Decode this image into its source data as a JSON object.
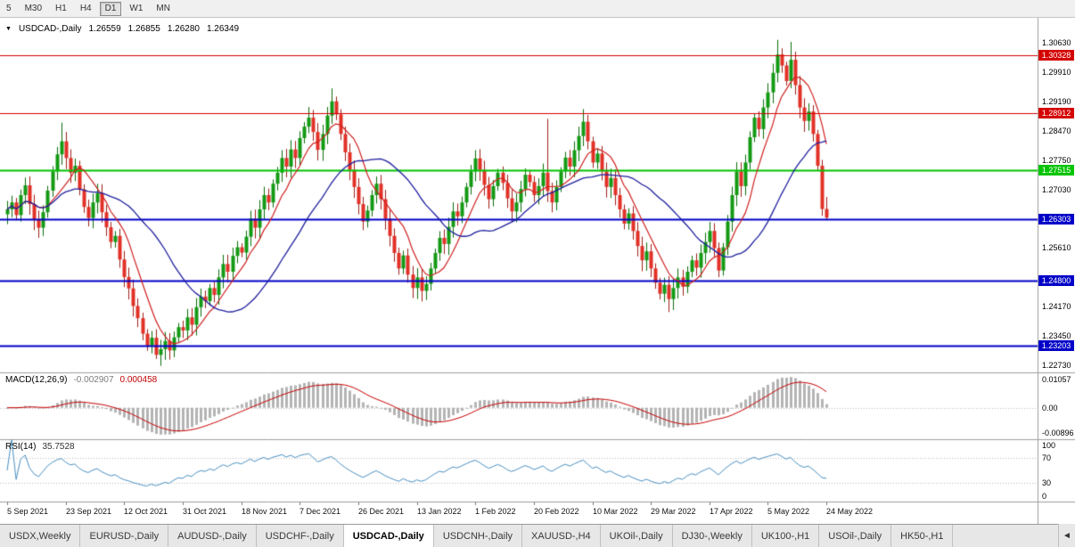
{
  "toolbar": {
    "timeframes": [
      {
        "label": "5",
        "active": false
      },
      {
        "label": "M30",
        "active": false
      },
      {
        "label": "H1",
        "active": false
      },
      {
        "label": "H4",
        "active": false
      },
      {
        "label": "D1",
        "active": true
      },
      {
        "label": "W1",
        "active": false
      },
      {
        "label": "MN",
        "active": false
      }
    ]
  },
  "chart": {
    "marker": "▼",
    "symbol": "USDCAD-,Daily",
    "open": "1.26559",
    "high": "1.26855",
    "low": "1.26280",
    "close": "1.26349"
  },
  "chart_data": {
    "type": "candlestick",
    "title": "USDCAD-,Daily",
    "price_range": [
      1.2255,
      1.3125
    ],
    "closes": [
      1.2655,
      1.2672,
      1.2641,
      1.269,
      1.2714,
      1.2668,
      1.2631,
      1.261,
      1.2648,
      1.2701,
      1.2748,
      1.279,
      1.2822,
      1.2781,
      1.2745,
      1.2762,
      1.2704,
      1.2661,
      1.2634,
      1.2672,
      1.2695,
      1.2648,
      1.2611,
      1.2575,
      1.259,
      1.2532,
      1.2489,
      1.2461,
      1.2418,
      1.2388,
      1.235,
      1.2321,
      1.234,
      1.2298,
      1.2312,
      1.2332,
      1.2309,
      1.2341,
      1.2366,
      1.2358,
      1.239,
      1.2372,
      1.2415,
      1.2441,
      1.243,
      1.2462,
      1.2445,
      1.2488,
      1.2521,
      1.2502,
      1.2541,
      1.2562,
      1.2549,
      1.2588,
      1.2632,
      1.261,
      1.2655,
      1.269,
      1.2672,
      1.2718,
      1.2745,
      1.2781,
      1.276,
      1.2802,
      1.2781,
      1.283,
      1.2858,
      1.288,
      1.2845,
      1.2801,
      1.284,
      1.2885,
      1.292,
      1.2888,
      1.284,
      1.2795,
      1.2752,
      1.271,
      1.2668,
      1.2625,
      1.2652,
      1.269,
      1.2718,
      1.268,
      1.2632,
      1.259,
      1.2548,
      1.251,
      1.2542,
      1.2495,
      1.2462,
      1.2488,
      1.2455,
      1.2472,
      1.251,
      1.2548,
      1.2585,
      1.257,
      1.2612,
      1.265,
      1.2638,
      1.2672,
      1.271,
      1.2748,
      1.278,
      1.2752,
      1.2715,
      1.268,
      1.2712,
      1.2745,
      1.272,
      1.2682,
      1.265,
      1.2672,
      1.2705,
      1.274,
      1.2722,
      1.269,
      1.2712,
      1.2745,
      1.27,
      1.2672,
      1.271,
      1.2748,
      1.2782,
      1.276,
      1.28,
      1.2835,
      1.287,
      1.2822,
      1.277,
      1.2792,
      1.2748,
      1.271,
      1.2732,
      1.269,
      1.2655,
      1.262,
      1.2645,
      1.2602,
      1.2565,
      1.253,
      1.2552,
      1.251,
      1.2475,
      1.2448,
      1.247,
      1.2435,
      1.2462,
      1.2488,
      1.2465,
      1.2502,
      1.253,
      1.2512,
      1.2548,
      1.2575,
      1.2602,
      1.256,
      1.2505,
      1.2562,
      1.2625,
      1.269,
      1.2748,
      1.2712,
      1.277,
      1.2832,
      1.288,
      1.2852,
      1.2905,
      1.2942,
      1.299,
      1.3035,
      1.3008,
      1.297,
      1.3022,
      1.296,
      1.2905,
      1.2872,
      1.2895,
      1.284,
      1.2762,
      1.2656,
      1.26349
    ],
    "wick_overrides": {
      "12": {
        "h": 1.2868
      },
      "33": {
        "l": 1.2288
      },
      "67": {
        "h": 1.2906
      },
      "72": {
        "h": 1.2952
      },
      "120": {
        "h": 1.2877
      },
      "128": {
        "h": 1.2901
      },
      "147": {
        "l": 1.2403
      },
      "171": {
        "h": 1.3071
      },
      "174": {
        "h": 1.3066
      },
      "182": {
        "o": 1.26559,
        "h": 1.26855,
        "l": 1.2628
      }
    },
    "levels": [
      {
        "price": 1.30328,
        "text": "1.30328",
        "color": "#d40000",
        "width": 1
      },
      {
        "price": 1.28912,
        "text": "1.28912",
        "color": "#d40000",
        "width": 1
      },
      {
        "price": 1.27515,
        "text": "1.27515",
        "color": "#00c400",
        "width": 2
      },
      {
        "price": 1.26303,
        "text": "1.26303",
        "color": "#0000c8",
        "width": 2
      },
      {
        "price": 1.248,
        "text": "1.24800",
        "color": "#0000c8",
        "width": 2
      },
      {
        "price": 1.23203,
        "text": "1.23203",
        "color": "#0000c8",
        "width": 2
      }
    ],
    "y_axis_labels": [
      "1.30630",
      "1.29910",
      "1.29190",
      "1.28470",
      "1.27750",
      "1.27030",
      "1.25610",
      "1.24170",
      "1.23450",
      "1.22730"
    ],
    "x_labels": [
      "5 Sep 2021",
      "23 Sep 2021",
      "12 Oct 2021",
      "31 Oct 2021",
      "18 Nov 2021",
      "7 Dec 2021",
      "26 Dec 2021",
      "13 Jan 2022",
      "1 Feb 2022",
      "20 Feb 2022",
      "10 Mar 2022",
      "29 Mar 2022",
      "17 Apr 2022",
      "5 May 2022",
      "24 May 2022"
    ],
    "x_label_indices": [
      0,
      13,
      26,
      39,
      52,
      65,
      78,
      91,
      104,
      117,
      130,
      143,
      156,
      169,
      182
    ],
    "indicators": {
      "macd": {
        "label": "MACD(12,26,9)",
        "main_value": "-0.002907",
        "signal_value": "0.000458",
        "axis": [
          "0.01057",
          "0.00",
          "-0.00896"
        ]
      },
      "rsi": {
        "label": "RSI(14)",
        "value": "35.7528",
        "axis": [
          "100",
          "70",
          "30",
          "0"
        ],
        "levels": [
          70,
          30
        ]
      }
    },
    "colors": {
      "up_fill": "#149a14",
      "up_border": "#0a6e0a",
      "down_fill": "#e23127",
      "down_border": "#9e1f17",
      "ma_fast": "#d02020",
      "ma_slow": "#1f1f9e",
      "macd_hist": "#b4b4b4",
      "macd_signal": "#c80000",
      "rsi": "#4a90c2",
      "grid_dotted": "#bdbdbd",
      "separator": "#9e9e9e"
    }
  },
  "tab_bar": {
    "scroll_left": "◄",
    "tabs": [
      {
        "label": "USDX,Weekly",
        "active": false
      },
      {
        "label": "EURUSD-,Daily",
        "active": false
      },
      {
        "label": "AUDUSD-,Daily",
        "active": false
      },
      {
        "label": "USDCHF-,Daily",
        "active": false
      },
      {
        "label": "USDCAD-,Daily",
        "active": true
      },
      {
        "label": "USDCNH-,Daily",
        "active": false
      },
      {
        "label": "XAUUSD-,H4",
        "active": false
      },
      {
        "label": "UKOil-,Daily",
        "active": false
      },
      {
        "label": "DJ30-,Weekly",
        "active": false
      },
      {
        "label": "UK100-,H1",
        "active": false
      },
      {
        "label": "USOil-,Daily",
        "active": false
      },
      {
        "label": "HK50-,H1",
        "active": false
      }
    ]
  }
}
